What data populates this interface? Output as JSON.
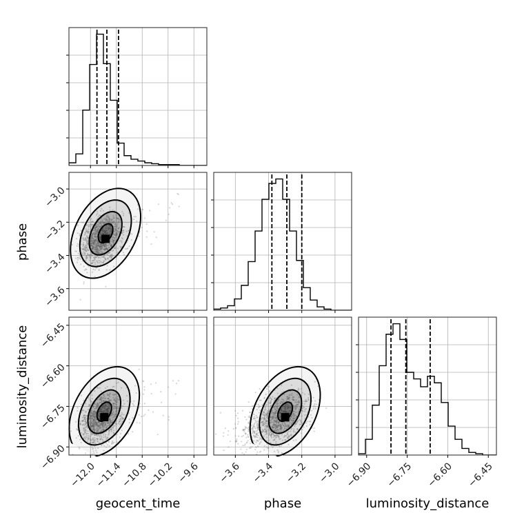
{
  "chart_data": {
    "type": "corner",
    "grid": true,
    "parameters": [
      "geocent_time",
      "phase",
      "luminosity_distance"
    ],
    "ranges": {
      "geocent_time": [
        -12.5,
        -9.3
      ],
      "phase": [
        -3.73,
        -2.9
      ],
      "luminosity_distance": [
        -6.93,
        -6.42
      ]
    },
    "ticks": {
      "geocent_time": [
        -12.0,
        -11.4,
        -10.8,
        -10.2,
        -9.6
      ],
      "phase": [
        -3.6,
        -3.4,
        -3.2,
        -3.0
      ],
      "luminosity_distance": [
        -6.9,
        -6.75,
        -6.6,
        -6.45
      ]
    },
    "tick_labels": {
      "geocent_time": [
        "−12.0",
        "−11.4",
        "−10.8",
        "−10.2",
        "−9.6"
      ],
      "phase": [
        "−3.6",
        "−3.4",
        "−3.2",
        "−3.0"
      ],
      "luminosity_distance": [
        "−6.90",
        "−6.75",
        "−6.60",
        "−6.45"
      ]
    },
    "quantiles": {
      "geocent_time": [
        -11.85,
        -11.62,
        -11.35
      ],
      "phase": [
        -3.38,
        -3.29,
        -3.2
      ],
      "luminosity_distance": [
        -6.81,
        -6.755,
        -6.665
      ]
    },
    "histograms": {
      "geocent_time": {
        "bin_edges": [
          -12.5,
          -12.34,
          -12.18,
          -12.02,
          -11.86,
          -11.7,
          -11.54,
          -11.38,
          -11.22,
          -11.06,
          -10.9,
          -10.74,
          -10.58,
          -10.42,
          -10.26,
          -10.1,
          -9.94,
          -9.78,
          -9.62,
          -9.46,
          -9.3
        ],
        "counts": [
          3,
          13,
          62,
          113,
          147,
          114,
          73,
          25,
          11,
          7,
          5,
          3,
          2,
          1,
          1,
          1,
          0,
          0,
          0,
          0
        ]
      },
      "phase": {
        "bin_edges": [
          -3.73,
          -3.6885,
          -3.647,
          -3.6055,
          -3.564,
          -3.5225,
          -3.481,
          -3.4395,
          -3.398,
          -3.3565,
          -3.315,
          -3.2735,
          -3.232,
          -3.1905,
          -3.149,
          -3.1075,
          -3.066,
          -3.0245,
          -2.983,
          -2.9415,
          -2.9
        ],
        "counts": [
          1,
          2,
          4,
          10,
          22,
          43,
          70,
          98,
          112,
          116,
          98,
          70,
          44,
          20,
          9,
          3,
          1,
          0,
          0,
          0
        ]
      },
      "luminosity_distance": {
        "bin_edges": [
          -6.93,
          -6.9045,
          -6.879,
          -6.8535,
          -6.828,
          -6.8025,
          -6.777,
          -6.7515,
          -6.726,
          -6.7005,
          -6.675,
          -6.6495,
          -6.624,
          -6.5985,
          -6.573,
          -6.5475,
          -6.522,
          -6.4965,
          -6.471,
          -6.4455,
          -6.42
        ],
        "counts": [
          1,
          12,
          38,
          68,
          92,
          100,
          88,
          63,
          58,
          52,
          60,
          55,
          40,
          22,
          12,
          5,
          2,
          1,
          0,
          0
        ]
      }
    },
    "pair_modes": {
      "phase|geocent_time": [
        -11.65,
        -3.3
      ],
      "luminosity_distance|geocent_time": [
        -11.68,
        -6.79
      ],
      "luminosity_distance|phase": [
        -3.3,
        -6.79
      ]
    },
    "density_color": "#000000",
    "sample_color": "#888888"
  },
  "axis_labels": {
    "geocent_time": "geocent_time",
    "phase": "phase",
    "luminosity_distance": "luminosity_distance"
  }
}
